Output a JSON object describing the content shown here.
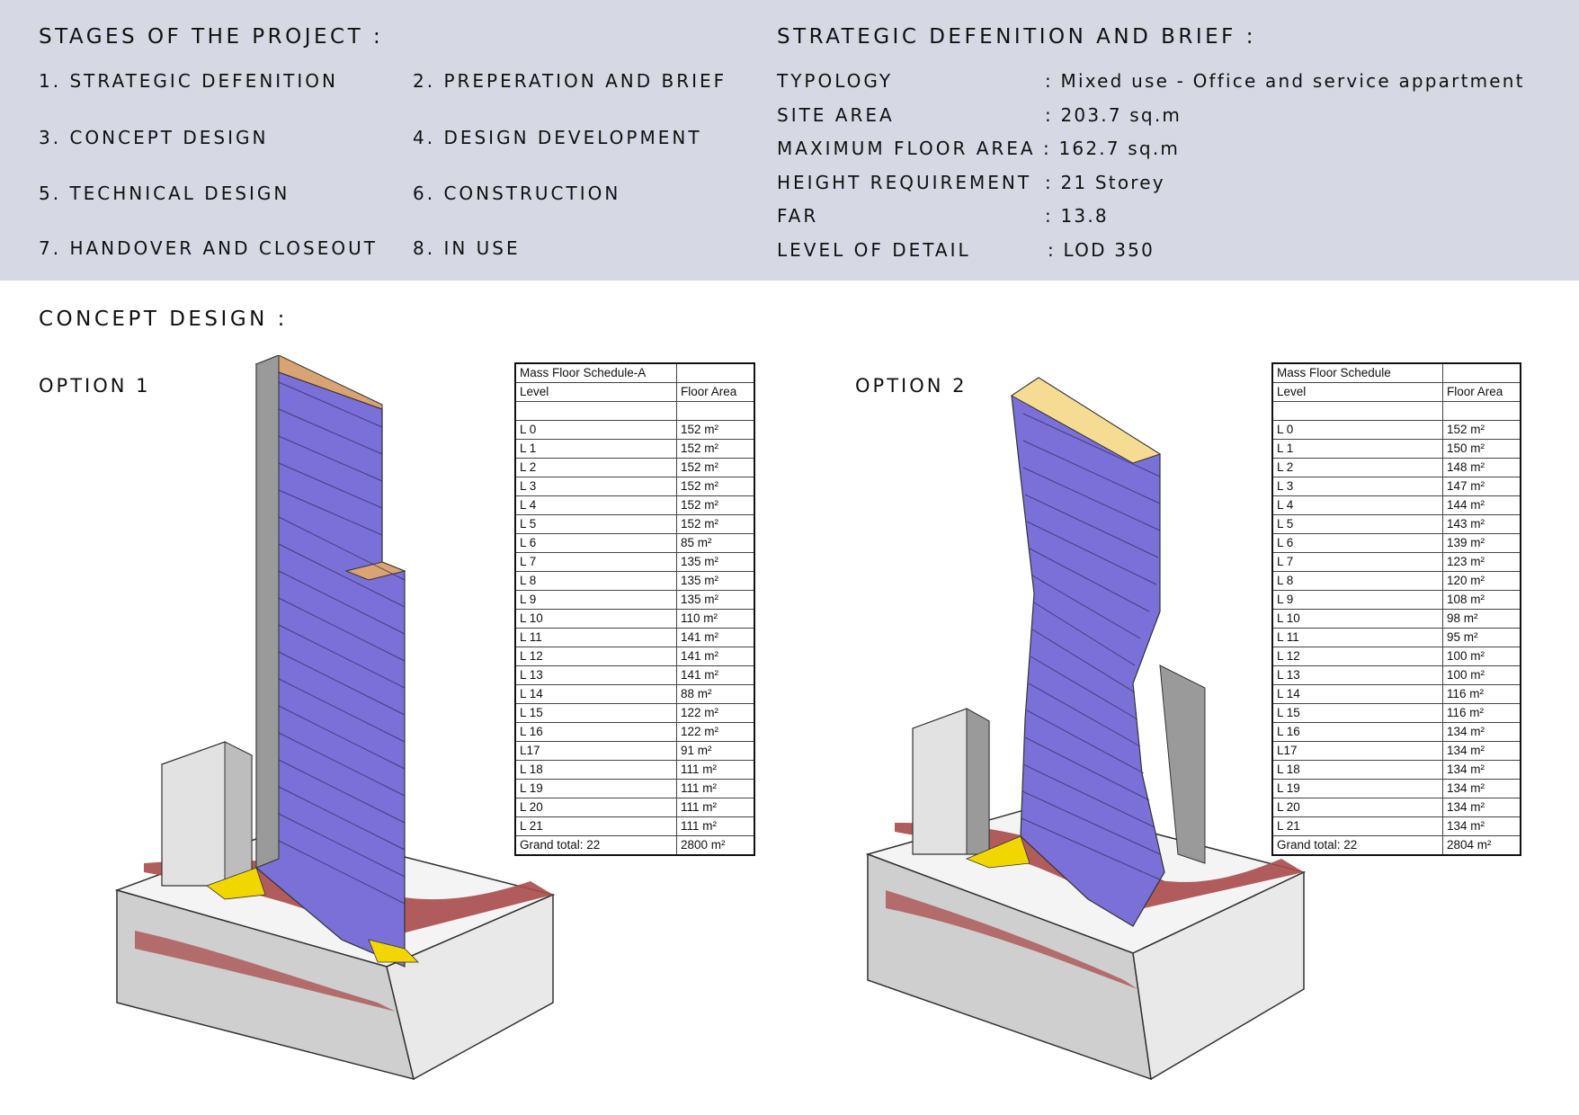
{
  "stages": {
    "title": "STAGES OF THE PROJECT :",
    "items": [
      "1. STRATEGIC DEFENITION",
      "2. PREPERATION AND BRIEF",
      "3. CONCEPT DESIGN",
      "4. DESIGN DEVELOPMENT",
      "5. TECHNICAL DESIGN",
      "6. CONSTRUCTION",
      "7. HANDOVER AND CLOSEOUT",
      "8. IN USE"
    ]
  },
  "brief": {
    "title": "STRATEGIC DEFENITION AND BRIEF  :",
    "rows": [
      {
        "label": "TYPOLOGY",
        "value": ": Mixed use - Office and service appartment"
      },
      {
        "label": "SITE AREA",
        "value": ": 203.7 sq.m"
      },
      {
        "label": "MAXIMUM FLOOR AREA",
        "value": ": 162.7 sq.m"
      },
      {
        "label": "HEIGHT REQUIREMENT",
        "value": ": 21 Storey"
      },
      {
        "label": "FAR",
        "value": ": 13.8"
      },
      {
        "label": "LEVEL OF DETAIL",
        "value": ": LOD 350"
      }
    ]
  },
  "concept": {
    "title": "CONCEPT DESIGN :",
    "colors": {
      "floor": "#7b6fd8",
      "roof": "#d9a373",
      "roof2": "#f6dc93",
      "road": "#a84b4b",
      "band": "#d6d9e3"
    },
    "options": [
      {
        "label": "OPTION 1",
        "schedule": {
          "title": "Mass Floor Schedule-A",
          "col_level": "Level",
          "col_area": "Floor Area",
          "rows": [
            [
              "L 0",
              "152 m²"
            ],
            [
              "L 1",
              "152 m²"
            ],
            [
              "L 2",
              "152 m²"
            ],
            [
              "L 3",
              "152 m²"
            ],
            [
              "L 4",
              "152 m²"
            ],
            [
              "L 5",
              "152 m²"
            ],
            [
              "L 6",
              "85 m²"
            ],
            [
              "L 7",
              "135 m²"
            ],
            [
              "L 8",
              "135 m²"
            ],
            [
              "L 9",
              "135 m²"
            ],
            [
              "L 10",
              "110 m²"
            ],
            [
              "L 11",
              "141 m²"
            ],
            [
              "L 12",
              "141 m²"
            ],
            [
              "L 13",
              "141 m²"
            ],
            [
              "L 14",
              "88 m²"
            ],
            [
              "L 15",
              "122 m²"
            ],
            [
              "L 16",
              "122 m²"
            ],
            [
              "L17",
              "91 m²"
            ],
            [
              "L 18",
              "111 m²"
            ],
            [
              "L 19",
              "111 m²"
            ],
            [
              "L 20",
              "111 m²"
            ],
            [
              "L 21",
              "111 m²"
            ]
          ],
          "total_label": "Grand total: 22",
          "total_area": "2800 m²"
        }
      },
      {
        "label": "OPTION 2",
        "schedule": {
          "title": "Mass Floor Schedule",
          "col_level": "Level",
          "col_area": "Floor Area",
          "rows": [
            [
              "L 0",
              "152 m²"
            ],
            [
              "L 1",
              "150 m²"
            ],
            [
              "L 2",
              "148 m²"
            ],
            [
              "L 3",
              "147 m²"
            ],
            [
              "L 4",
              "144 m²"
            ],
            [
              "L 5",
              "143 m²"
            ],
            [
              "L 6",
              "139 m²"
            ],
            [
              "L 7",
              "123 m²"
            ],
            [
              "L 8",
              "120 m²"
            ],
            [
              "L 9",
              "108 m²"
            ],
            [
              "L 10",
              "98 m²"
            ],
            [
              "L 11",
              "95 m²"
            ],
            [
              "L 12",
              "100 m²"
            ],
            [
              "L 13",
              "100 m²"
            ],
            [
              "L 14",
              "116 m²"
            ],
            [
              "L 15",
              "116 m²"
            ],
            [
              "L 16",
              "134 m²"
            ],
            [
              "L17",
              "134 m²"
            ],
            [
              "L 18",
              "134 m²"
            ],
            [
              "L 19",
              "134 m²"
            ],
            [
              "L 20",
              "134 m²"
            ],
            [
              "L 21",
              "134 m²"
            ]
          ],
          "total_label": "Grand total: 22",
          "total_area": "2804 m²"
        }
      }
    ]
  }
}
